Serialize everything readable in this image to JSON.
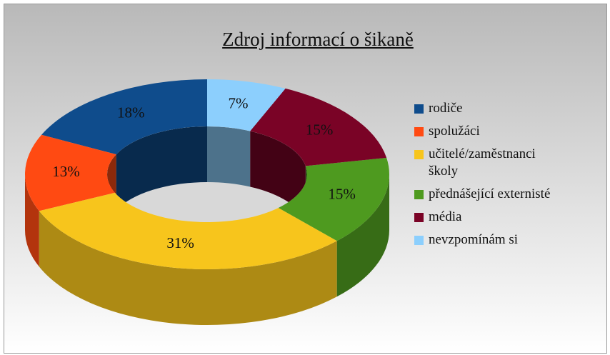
{
  "chart_data": {
    "type": "pie",
    "donut": true,
    "title": "Zdroj informací o šikaně",
    "categories": [
      "rodiče",
      "spolužáci",
      "učitelé/zaměstnanci školy",
      "přednášející externisté",
      "média",
      "nevzpomínám si"
    ],
    "values": [
      18,
      13,
      31,
      15,
      15,
      7
    ],
    "value_labels": [
      "18%",
      "13%",
      "31%",
      "15%",
      "15%",
      "7%"
    ],
    "colors": [
      "#0f4c8c",
      "#ff4a12",
      "#f7c51c",
      "#4e9a1f",
      "#7a0326",
      "#8ccffd"
    ],
    "legend": "right"
  }
}
